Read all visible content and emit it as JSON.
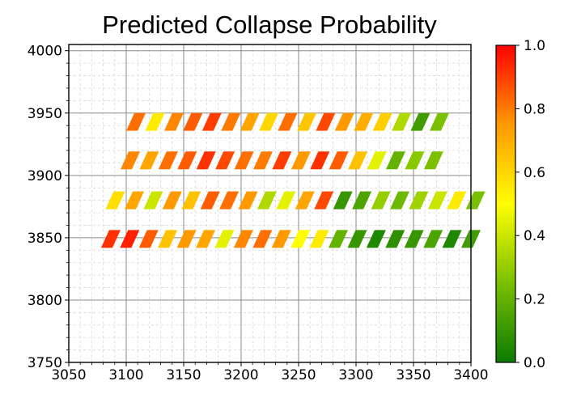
{
  "chart_data": {
    "type": "scatter",
    "title": "Predicted Collapse Probability",
    "xlabel": "",
    "ylabel": "",
    "xlim": [
      3050,
      3400
    ],
    "ylim": [
      3750,
      4005
    ],
    "xticks": [
      "3050",
      "3100",
      "3150",
      "3200",
      "3250",
      "3300",
      "3350",
      "3400"
    ],
    "yticks": [
      "3750",
      "3800",
      "3850",
      "3900",
      "3950",
      "4000"
    ],
    "grid": true,
    "marker": "parallelogram",
    "marker_width": 14,
    "marker_rise": 22,
    "marker_skew": 10,
    "colorbar": {
      "min": 0.0,
      "max": 1.0,
      "ticks": [
        "0.0",
        "0.2",
        "0.4",
        "0.6",
        "0.8",
        "1.0"
      ],
      "colors": [
        "#0a7a00",
        "#7ac000",
        "#ffff00",
        "#ff9900",
        "#ff0000"
      ]
    },
    "rows": [
      {
        "y": 3943,
        "x_start": 3105,
        "x_step": 16.5,
        "probabilities": [
          0.82,
          0.55,
          0.78,
          0.85,
          0.9,
          0.8,
          0.72,
          0.6,
          0.82,
          0.64,
          0.88,
          0.75,
          0.7,
          0.62,
          0.35,
          0.12,
          0.25
        ]
      },
      {
        "y": 3912,
        "x_start": 3100,
        "x_step": 16.5,
        "probabilities": [
          0.78,
          0.72,
          0.82,
          0.85,
          0.92,
          0.88,
          0.82,
          0.8,
          0.9,
          0.75,
          0.92,
          0.85,
          0.65,
          0.45,
          0.2,
          0.28,
          0.25
        ]
      },
      {
        "y": 3880,
        "x_start": 3087,
        "x_step": 16.5,
        "probabilities": [
          0.58,
          0.72,
          0.4,
          0.75,
          0.65,
          0.85,
          0.82,
          0.75,
          0.35,
          0.45,
          0.72,
          0.88,
          0.1,
          0.15,
          0.3,
          0.22,
          0.32,
          0.4,
          0.55,
          0.25
        ]
      },
      {
        "y": 3849,
        "x_start": 3083,
        "x_step": 16.5,
        "probabilities": [
          0.92,
          0.95,
          0.85,
          0.65,
          0.75,
          0.72,
          0.45,
          0.78,
          0.82,
          0.75,
          0.5,
          0.55,
          0.2,
          0.1,
          0.05,
          0.08,
          0.1,
          0.15,
          0.05,
          0.12
        ]
      }
    ]
  }
}
